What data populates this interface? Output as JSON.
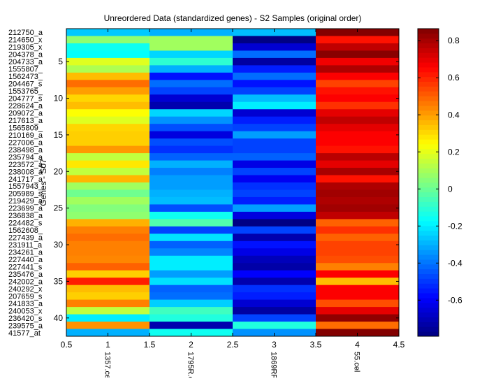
{
  "chart_data": {
    "type": "heatmap",
    "title": "Unreordered Data (standardized genes) - S2 Samples (original order)",
    "xlabel": "",
    "ylabel": "Genes - S07",
    "colormap": "jet",
    "clim": [
      -0.795,
      0.865
    ],
    "xlim": [
      0.5,
      4.5
    ],
    "x_ticks": [
      "0.5",
      "1",
      "1.5",
      "2",
      "2.5",
      "3",
      "3.5",
      "4",
      "4.5"
    ],
    "y_ticks": [
      "5",
      "10",
      "15",
      "20",
      "25",
      "30",
      "35",
      "40"
    ],
    "y_tick_values": [
      5,
      10,
      15,
      20,
      25,
      30,
      35,
      40
    ],
    "columns": [
      "1357.cel",
      "1795R.c",
      "1869RR",
      "55.cel"
    ],
    "rows": [
      "212750_a",
      "214650_x",
      "219305_x",
      "204378_a",
      "204733_a",
      "1555807_",
      "1562473_",
      "204467_s",
      "1553765_",
      "204777_s",
      "228624_a",
      "209072_a",
      "217613_a",
      "1565809_",
      "210169_a",
      "227006_a",
      "238498_a",
      "235794_a",
      "223572_a",
      "238008_a",
      "241717_a",
      "1557943_",
      "205989_s",
      "219429_a",
      "223699_a",
      "236838_a",
      "224482_s",
      "1562608_",
      "227439_a",
      "231911_a",
      "234261_a",
      "227440_a",
      "227441_s",
      "235476_a",
      "242002_a",
      "240292_x",
      "207659_s",
      "241833_a",
      "240053_x",
      "236420_s",
      "239575_a",
      "41577_at"
    ],
    "values": [
      [
        -0.26,
        -0.3,
        -0.28,
        0.86
      ],
      [
        0.06,
        0.09,
        -0.79,
        0.63
      ],
      [
        -0.15,
        0.09,
        -0.66,
        0.76
      ],
      [
        -0.17,
        -0.24,
        -0.41,
        0.85
      ],
      [
        0.19,
        -0.1,
        -0.74,
        0.68
      ],
      [
        0.11,
        -0.3,
        -0.54,
        0.79
      ],
      [
        0.35,
        -0.56,
        -0.41,
        0.66
      ],
      [
        0.48,
        -0.41,
        -0.56,
        0.55
      ],
      [
        0.4,
        -0.48,
        -0.48,
        0.63
      ],
      [
        0.31,
        -0.66,
        -0.28,
        0.66
      ],
      [
        0.35,
        -0.72,
        -0.2,
        0.58
      ],
      [
        0.24,
        -0.24,
        -0.66,
        0.7
      ],
      [
        0.19,
        -0.35,
        -0.54,
        0.76
      ],
      [
        0.31,
        -0.46,
        -0.48,
        0.7
      ],
      [
        0.32,
        -0.64,
        -0.33,
        0.66
      ],
      [
        0.32,
        -0.46,
        -0.48,
        0.66
      ],
      [
        0.41,
        -0.51,
        -0.48,
        0.63
      ],
      [
        0.14,
        -0.43,
        -0.43,
        0.77
      ],
      [
        0.28,
        -0.3,
        -0.63,
        0.7
      ],
      [
        0.14,
        -0.38,
        -0.48,
        0.8
      ],
      [
        0.36,
        -0.33,
        -0.61,
        0.63
      ],
      [
        0.09,
        -0.33,
        -0.51,
        0.79
      ],
      [
        0.01,
        -0.3,
        -0.48,
        0.81
      ],
      [
        0.09,
        -0.28,
        -0.54,
        0.79
      ],
      [
        0.04,
        -0.46,
        -0.33,
        0.81
      ],
      [
        0.06,
        -0.15,
        -0.64,
        0.76
      ],
      [
        0.37,
        -0.04,
        -0.79,
        0.5
      ],
      [
        0.45,
        -0.48,
        -0.48,
        0.58
      ],
      [
        0.48,
        -0.22,
        -0.72,
        0.5
      ],
      [
        0.45,
        -0.43,
        -0.56,
        0.55
      ],
      [
        0.45,
        -0.37,
        -0.63,
        0.55
      ],
      [
        0.44,
        -0.2,
        -0.7,
        0.53
      ],
      [
        0.5,
        -0.2,
        -0.73,
        0.45
      ],
      [
        0.32,
        -0.33,
        -0.59,
        0.66
      ],
      [
        0.61,
        -0.22,
        -0.72,
        0.35
      ],
      [
        0.35,
        -0.43,
        -0.51,
        0.66
      ],
      [
        0.32,
        -0.41,
        -0.54,
        0.66
      ],
      [
        0.45,
        -0.25,
        -0.66,
        0.53
      ],
      [
        0.14,
        -0.07,
        -0.74,
        0.7
      ],
      [
        -0.2,
        -0.12,
        -0.48,
        0.84
      ],
      [
        0.42,
        -0.72,
        -0.12,
        0.48
      ],
      [
        -0.3,
        -0.15,
        -0.35,
        0.86
      ]
    ],
    "colorbar": {
      "ticks": [
        "-0.6",
        "-0.4",
        "-0.2",
        "0",
        "0.2",
        "0.4",
        "0.6",
        "0.8"
      ],
      "tick_values": [
        -0.6,
        -0.4,
        -0.2,
        0,
        0.2,
        0.4,
        0.6,
        0.8
      ]
    },
    "grid": false
  }
}
